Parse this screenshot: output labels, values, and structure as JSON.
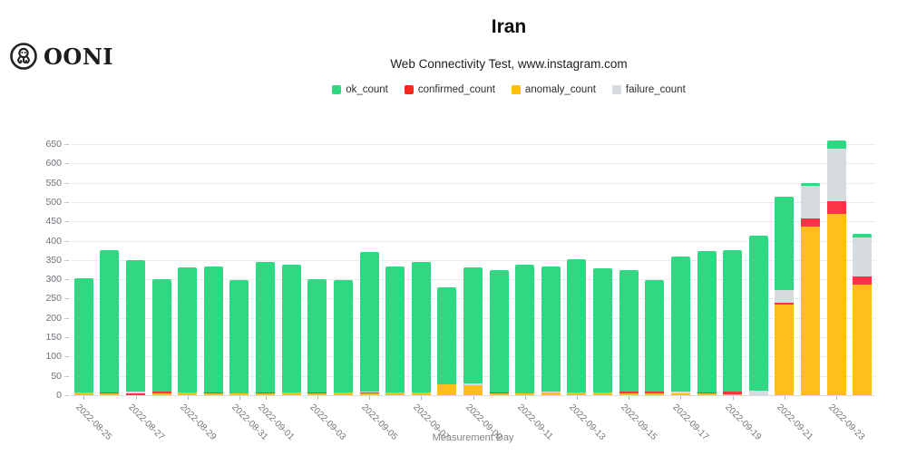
{
  "logo": {
    "text": "OONI"
  },
  "header": {
    "title": "Iran",
    "subtitle": "Web Connectivity Test, www.instagram.com"
  },
  "legend": [
    {
      "label": "ok_count",
      "color": "#2fd983"
    },
    {
      "label": "confirmed_count",
      "color": "#f4271b"
    },
    {
      "label": "anomaly_count",
      "color": "#ffbe0a"
    },
    {
      "label": "failure_count",
      "color": "#d6dbe0"
    }
  ],
  "chart_data": {
    "type": "bar",
    "stacked": true,
    "title": "Iran",
    "subtitle": "Web Connectivity Test, www.instagram.com",
    "xlabel": "Measurement Day",
    "ylabel": "",
    "ylim": [
      0,
      650
    ],
    "ytick_step": 50,
    "grid": true,
    "legend_position": "top-center",
    "categories": [
      "2022-08-25",
      "2022-08-26",
      "2022-08-27",
      "2022-08-28",
      "2022-08-29",
      "2022-08-30",
      "2022-08-31",
      "2022-09-01",
      "2022-09-02",
      "2022-09-03",
      "2022-09-04",
      "2022-09-05",
      "2022-09-06",
      "2022-09-07",
      "2022-09-08",
      "2022-09-09",
      "2022-09-10",
      "2022-09-11",
      "2022-09-12",
      "2022-09-13",
      "2022-09-14",
      "2022-09-15",
      "2022-09-16",
      "2022-09-17",
      "2022-09-18",
      "2022-09-19",
      "2022-09-20",
      "2022-09-21",
      "2022-09-22",
      "2022-09-23",
      "2022-09-24"
    ],
    "labeled_tick_indices": [
      0,
      2,
      4,
      6,
      7,
      9,
      11,
      13,
      15,
      17,
      19,
      21,
      23,
      25,
      27,
      29
    ],
    "stack_order_bottom_to_top": [
      "anomaly_count",
      "confirmed_count",
      "failure_count",
      "ok_count"
    ],
    "series": [
      {
        "name": "anomaly_count",
        "color": "#ffbe1a",
        "values": [
          6,
          4,
          0,
          5,
          8,
          5,
          5,
          5,
          7,
          4,
          6,
          5,
          6,
          8,
          28,
          26,
          5,
          5,
          6,
          8,
          8,
          5,
          5,
          4,
          4,
          3,
          0,
          235,
          436,
          470,
          286
        ]
      },
      {
        "name": "confirmed_count",
        "color": "#fb3347",
        "values": [
          0,
          3,
          4,
          5,
          0,
          3,
          0,
          3,
          0,
          3,
          0,
          2,
          0,
          0,
          0,
          0,
          3,
          0,
          0,
          0,
          0,
          5,
          4,
          0,
          3,
          6,
          0,
          5,
          22,
          31,
          21
        ]
      },
      {
        "name": "failure_count",
        "color": "#d6dbe0",
        "values": [
          0,
          0,
          5,
          0,
          0,
          0,
          0,
          0,
          0,
          0,
          0,
          3,
          0,
          0,
          0,
          4,
          0,
          0,
          3,
          0,
          0,
          0,
          0,
          5,
          0,
          0,
          12,
          33,
          84,
          137,
          102
        ]
      },
      {
        "name": "ok_count",
        "color": "#2fd983",
        "values": [
          296,
          368,
          341,
          290,
          322,
          325,
          292,
          338,
          331,
          293,
          291,
          360,
          328,
          337,
          252,
          300,
          317,
          332,
          324,
          343,
          320,
          315,
          288,
          349,
          367,
          366,
          400,
          242,
          8,
          21,
          8
        ]
      }
    ]
  }
}
